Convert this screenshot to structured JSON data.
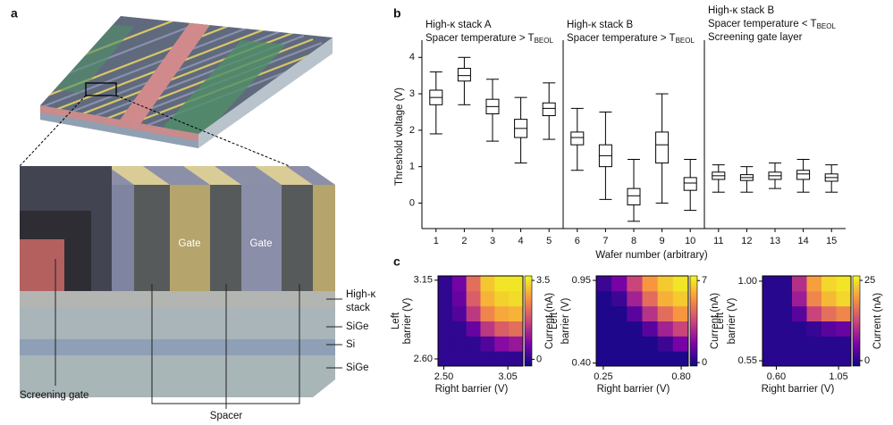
{
  "panel_a": {
    "label": "a",
    "gate_labels": [
      "Gate",
      "Gate"
    ],
    "high_k_label": [
      "High-κ",
      "stack"
    ],
    "layer_labels": [
      "SiGe",
      "Si",
      "SiGe"
    ],
    "screening_label": "Screening gate",
    "spacer_label": "Spacer"
  },
  "chart_data": [
    {
      "type": "box",
      "panel": "b",
      "groups": [
        {
          "title": "High-κ stack A",
          "condition": "Spacer temperature > T",
          "condition_sub": "BEOL"
        },
        {
          "title": "High-κ stack B",
          "condition": "Spacer temperature > T",
          "condition_sub": "BEOL"
        },
        {
          "title": "High-κ stack B",
          "condition": "Spacer temperature < T",
          "condition_sub": "BEOL",
          "extra": "Screening gate layer"
        }
      ],
      "categories": [
        "1",
        "2",
        "3",
        "4",
        "5",
        "6",
        "7",
        "8",
        "9",
        "10",
        "11",
        "12",
        "13",
        "14",
        "15"
      ],
      "boxes": [
        {
          "whislo": 1.9,
          "q1": 2.7,
          "med": 2.9,
          "q3": 3.1,
          "whishi": 3.6
        },
        {
          "whislo": 2.7,
          "q1": 3.35,
          "med": 3.5,
          "q3": 3.7,
          "whishi": 4.0
        },
        {
          "whislo": 1.7,
          "q1": 2.45,
          "med": 2.65,
          "q3": 2.85,
          "whishi": 3.4
        },
        {
          "whislo": 1.1,
          "q1": 1.8,
          "med": 2.05,
          "q3": 2.3,
          "whishi": 2.9
        },
        {
          "whislo": 1.75,
          "q1": 2.4,
          "med": 2.6,
          "q3": 2.75,
          "whishi": 3.3
        },
        {
          "whislo": 0.9,
          "q1": 1.6,
          "med": 1.8,
          "q3": 1.95,
          "whishi": 2.6
        },
        {
          "whislo": 0.1,
          "q1": 1.0,
          "med": 1.3,
          "q3": 1.6,
          "whishi": 2.5
        },
        {
          "whislo": -0.5,
          "q1": -0.05,
          "med": 0.2,
          "q3": 0.4,
          "whishi": 1.2
        },
        {
          "whislo": 0.0,
          "q1": 1.1,
          "med": 1.6,
          "q3": 1.95,
          "whishi": 3.0
        },
        {
          "whislo": -0.2,
          "q1": 0.35,
          "med": 0.55,
          "q3": 0.7,
          "whishi": 1.2
        },
        {
          "whislo": 0.3,
          "q1": 0.65,
          "med": 0.75,
          "q3": 0.85,
          "whishi": 1.05
        },
        {
          "whislo": 0.3,
          "q1": 0.62,
          "med": 0.7,
          "q3": 0.78,
          "whishi": 1.0
        },
        {
          "whislo": 0.4,
          "q1": 0.65,
          "med": 0.75,
          "q3": 0.85,
          "whishi": 1.1
        },
        {
          "whislo": 0.3,
          "q1": 0.65,
          "med": 0.8,
          "q3": 0.9,
          "whishi": 1.2
        },
        {
          "whislo": 0.3,
          "q1": 0.6,
          "med": 0.7,
          "q3": 0.8,
          "whishi": 1.05
        }
      ],
      "ylim": [
        -0.7,
        4.35
      ],
      "yticks": [
        0,
        1,
        2,
        3,
        4
      ],
      "xlabel": "Wafer number (arbitrary)",
      "ylabel": "Threshold voltage (V)"
    },
    {
      "type": "heatmap",
      "panel": "c",
      "xlabel": "Right barrier (V)",
      "ylabel": [
        "Left",
        "barrier (V)"
      ],
      "clabel": "Current (nA)",
      "xlim": [
        2.45,
        3.18
      ],
      "xticks": [
        {
          "value": 2.5,
          "label": "2.50"
        },
        {
          "value": 3.05,
          "label": "3.05"
        }
      ],
      "ylim": [
        2.55,
        3.18
      ],
      "yticks": [
        {
          "value": 2.6,
          "label": "2.60"
        },
        {
          "value": 3.15,
          "label": "3.15"
        }
      ],
      "clim": [
        -0.3,
        3.7
      ],
      "cticks": [
        0,
        3.5
      ],
      "z": [
        [
          0,
          0,
          0,
          0,
          0,
          0
        ],
        [
          0,
          0,
          0,
          0.3,
          0.8,
          1.0
        ],
        [
          0,
          0,
          0.5,
          1.5,
          2.0,
          2.2
        ],
        [
          0,
          0.3,
          1.5,
          2.5,
          2.9,
          3.0
        ],
        [
          0,
          0.5,
          2.0,
          3.0,
          3.3,
          3.4
        ],
        [
          0,
          0.6,
          2.2,
          3.2,
          3.5,
          3.5
        ]
      ]
    },
    {
      "type": "heatmap",
      "xlabel": "Right barrier (V)",
      "ylabel": [
        "Left",
        "barrier (V)"
      ],
      "clabel": "Current (nA)",
      "xlim": [
        0.2,
        0.85
      ],
      "xticks": [
        0.25,
        {
          "value": 0.8,
          "label": "0.80"
        }
      ],
      "ylim": [
        0.38,
        0.98
      ],
      "yticks": [
        {
          "value": 0.4,
          "label": "0.40"
        },
        0.95
      ],
      "clim": [
        -0.3,
        7.4
      ],
      "cticks": [
        0,
        7
      ],
      "z": [
        [
          0,
          0,
          0,
          0,
          0,
          0
        ],
        [
          0,
          0,
          0,
          0,
          0.5,
          1.5
        ],
        [
          0,
          0,
          0,
          1,
          2.5,
          3.5
        ],
        [
          0,
          0,
          1,
          3,
          4.5,
          5.5
        ],
        [
          0,
          0.5,
          2.5,
          4.5,
          6,
          6.5
        ],
        [
          0.5,
          1.5,
          3.5,
          5.5,
          6.5,
          7
        ]
      ]
    },
    {
      "type": "heatmap",
      "xlabel": "Right barrier (V)",
      "ylabel": [
        "Left",
        "barrier (V)"
      ],
      "clabel": "Current (nA)",
      "xlim": [
        0.5,
        1.14
      ],
      "xticks": [
        {
          "value": 0.6,
          "label": "0.60"
        },
        1.05
      ],
      "ylim": [
        0.52,
        1.03
      ],
      "yticks": [
        0.55,
        {
          "value": 1.0,
          "label": "1.00"
        }
      ],
      "clim": [
        -1.7,
        26.4
      ],
      "cticks": [
        0,
        25
      ],
      "z": [
        [
          0,
          0,
          0,
          0,
          0,
          0
        ],
        [
          0,
          0,
          0,
          0,
          0,
          0
        ],
        [
          0,
          0,
          0,
          1,
          3,
          4
        ],
        [
          0,
          0,
          3,
          12,
          16,
          18
        ],
        [
          0,
          0,
          8,
          18,
          22,
          24
        ],
        [
          0,
          0,
          10,
          20,
          24,
          25
        ]
      ]
    }
  ]
}
